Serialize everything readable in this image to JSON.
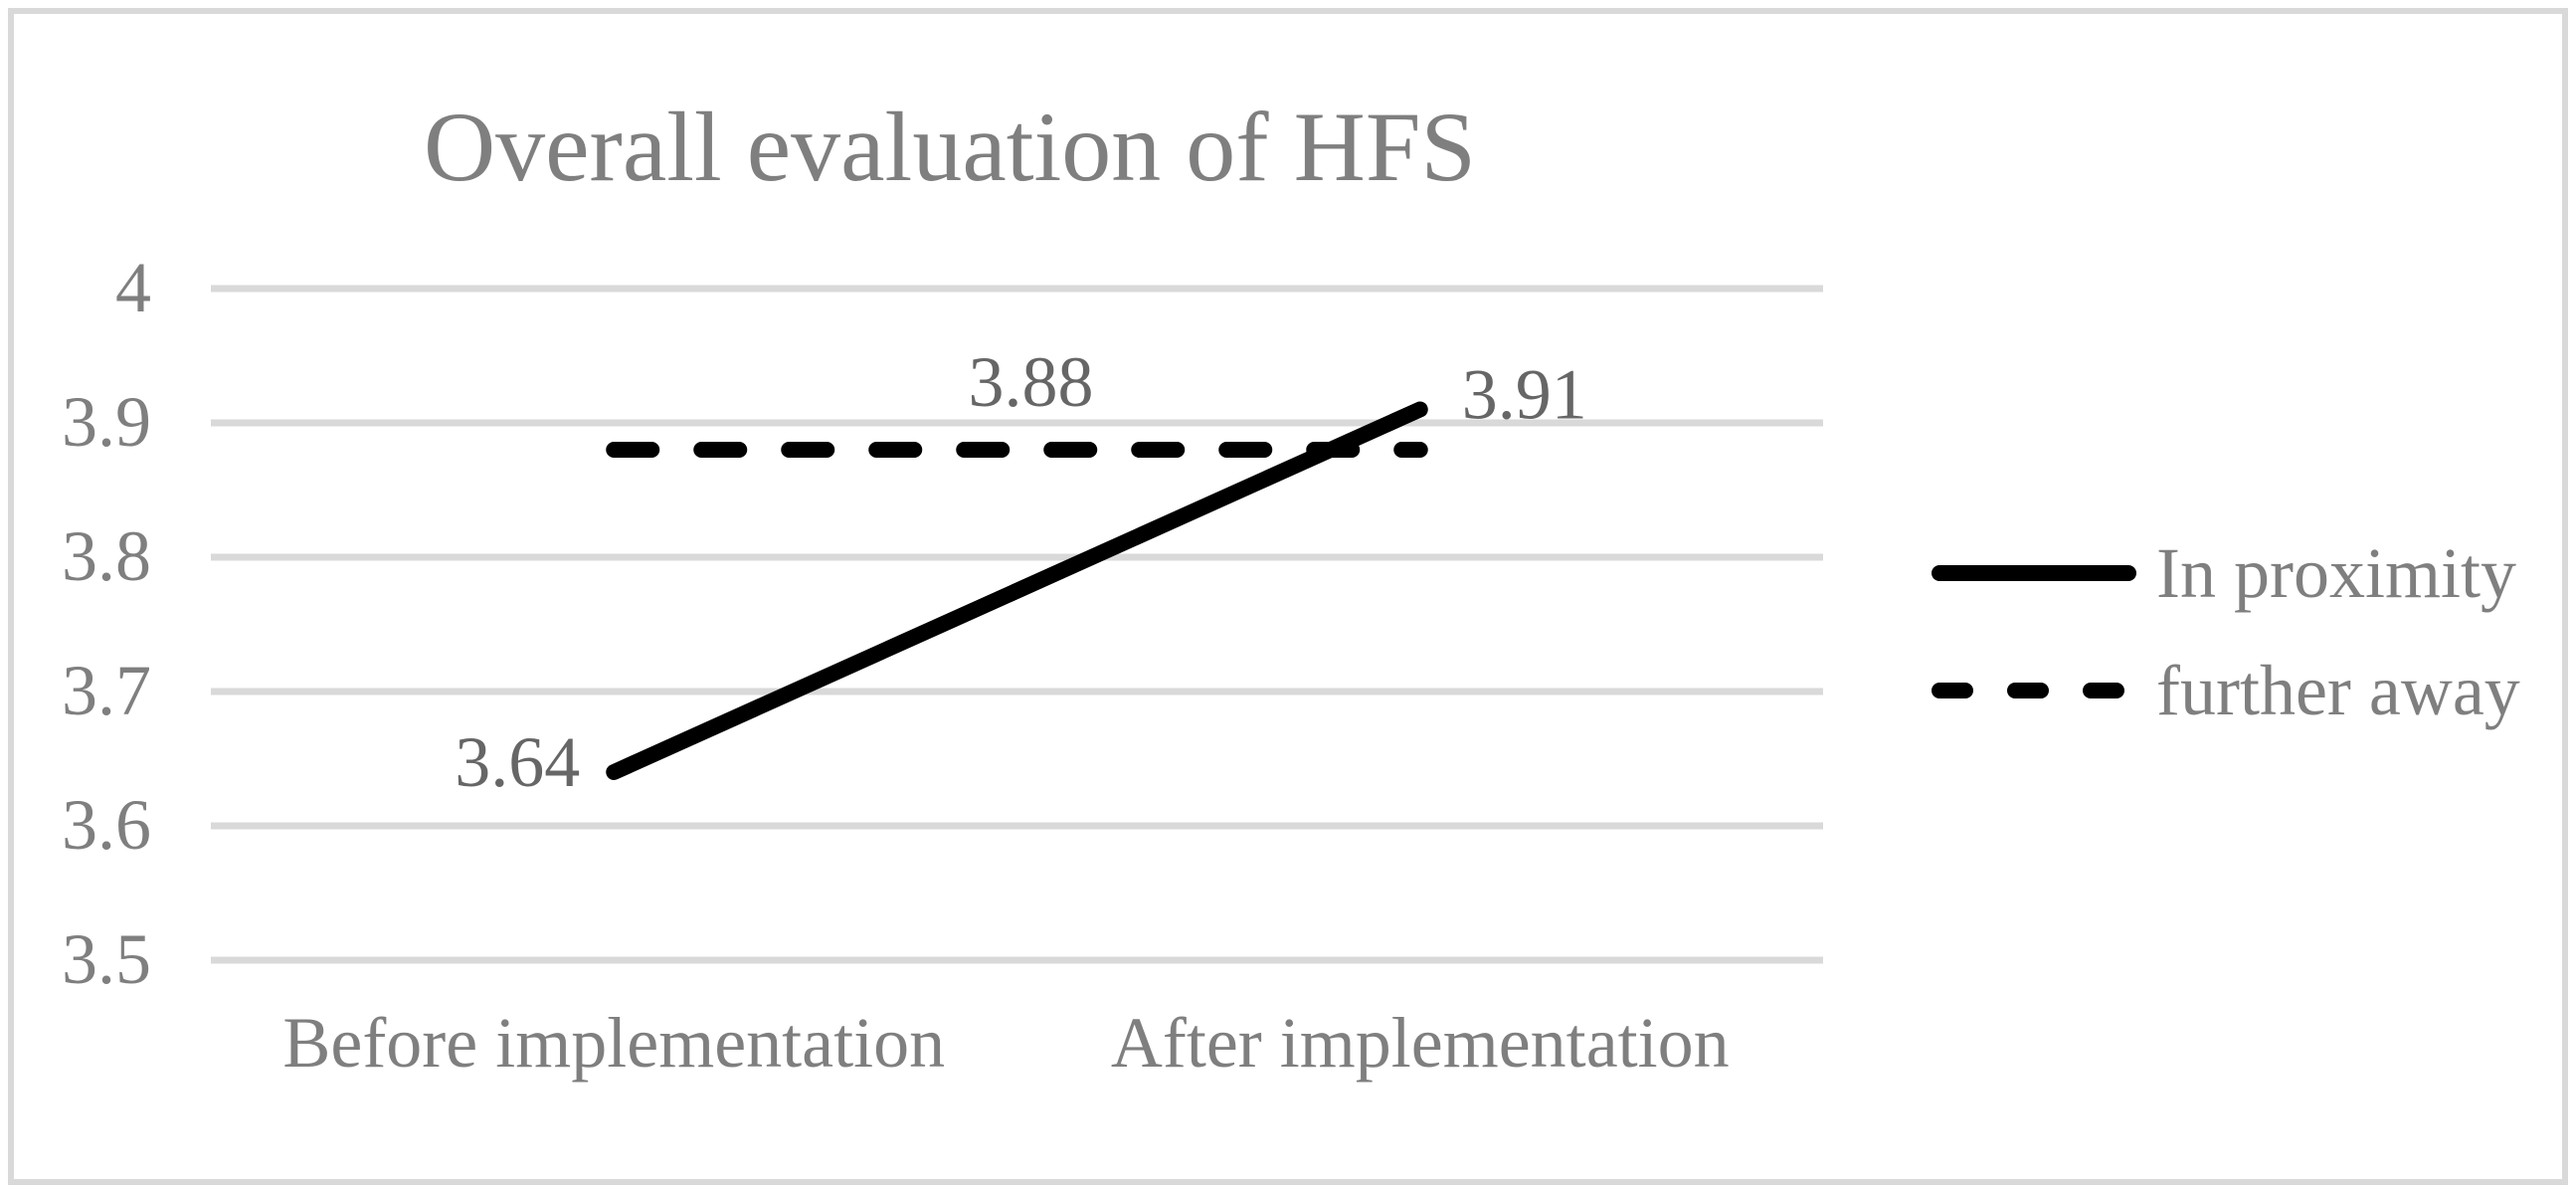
{
  "chart_data": {
    "type": "line",
    "title": "Overall evaluation of HFS",
    "categories": [
      "Before implementation",
      "After implementation"
    ],
    "series": [
      {
        "name": "In proximity",
        "style": "solid",
        "values": [
          3.64,
          3.91
        ],
        "labels": [
          {
            "text": "3.64",
            "position": "start"
          },
          {
            "text": "3.91",
            "position": "end"
          }
        ]
      },
      {
        "name": "further away",
        "style": "dashed",
        "values": [
          3.88,
          3.88
        ],
        "labels": [
          {
            "text": "3.88",
            "position": "mid"
          }
        ]
      }
    ],
    "y_axis": {
      "min": 3.5,
      "max": 4.0,
      "step": 0.1,
      "tick_labels": [
        "4",
        "3.9",
        "3.8",
        "3.7",
        "3.6",
        "3.5"
      ]
    },
    "grid": true,
    "legend_position": "right",
    "colors": {
      "series_line": "#000000",
      "gridline": "#d9d9d9",
      "border": "#d9d9d9",
      "text": "#7f7f7f",
      "data_label": "#666666",
      "background": "#ffffff"
    }
  }
}
